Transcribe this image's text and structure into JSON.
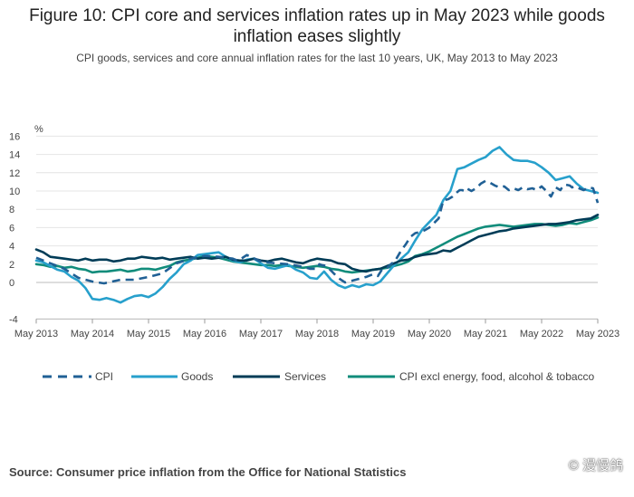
{
  "title": "Figure 10: CPI core and services inflation rates up in May 2023 while goods inflation eases slightly",
  "subtitle": "CPI goods, services and core annual inflation rates for the last 10 years, UK, May 2013 to May 2023",
  "source": "Source: Consumer price inflation from the Office for National Statistics",
  "watermark": "© 漫慢鸽",
  "chart_data": {
    "type": "line",
    "ylabel": "%",
    "ylim": [
      -4,
      16
    ],
    "yticks": [
      16,
      14,
      12,
      10,
      8,
      6,
      4,
      2,
      0,
      -4
    ],
    "xticks": [
      "May 2013",
      "May 2014",
      "May 2015",
      "May 2016",
      "May 2017",
      "May 2018",
      "May 2019",
      "May 2020",
      "May 2021",
      "May 2022",
      "May 2023"
    ],
    "legend_position": "bottom",
    "x_note": "x values are months after May 2013",
    "series": [
      {
        "name": "CPI",
        "color": "#206095",
        "dash": true,
        "x": [
          0,
          6,
          12,
          18,
          24,
          29,
          36,
          42,
          48,
          54,
          60,
          66,
          72,
          78,
          84,
          86,
          87,
          90,
          96,
          102,
          108,
          114,
          117,
          120,
          121,
          122,
          124,
          126,
          129,
          132,
          138,
          141,
          144,
          146,
          148,
          150,
          152,
          153,
          156,
          158,
          160,
          162,
          164,
          166,
          168,
          170,
          172,
          173,
          174,
          176,
          178,
          180,
          181,
          182,
          183,
          184,
          186,
          188,
          190,
          192,
          194,
          196,
          198,
          200,
          202,
          204,
          206,
          208,
          210,
          212,
          214,
          216,
          218,
          220,
          222,
          224,
          225,
          226,
          228,
          229,
          230,
          232,
          234,
          236,
          238,
          240
        ],
        "y": [
          2.7,
          2.1,
          1.5,
          0.5,
          0.1,
          -0.1,
          0.3,
          0.3,
          0.6,
          1.0,
          2.1,
          2.6,
          2.9,
          2.8,
          2.6,
          2.4,
          2.5,
          3.0,
          2.3,
          2.1,
          2.0,
          1.7,
          1.5,
          1.5,
          2.0,
          1.9,
          1.8,
          1.3,
          0.5,
          0.0,
          0.4,
          0.6,
          0.9,
          0.7,
          1.5,
          1.6,
          2.1,
          2.2,
          3.5,
          4.2,
          5.0,
          5.4,
          5.5,
          5.7,
          6.0,
          6.5,
          7.0,
          8.0,
          9.0,
          9.1,
          9.4,
          9.9,
          10.1,
          10.1,
          10.0,
          10.3,
          10.0,
          10.3,
          10.8,
          11.1,
          10.9,
          10.6,
          10.4,
          10.5,
          10.1,
          10.3,
          10.1,
          10.4,
          10.2,
          10.3,
          10.1,
          10.5,
          10.0,
          9.4,
          10.4,
          10.1,
          10.5,
          10.7,
          10.6,
          10.4,
          10.5,
          10.3,
          10.1,
          10.4,
          10.3,
          8.7
        ]
      },
      {
        "name": "Goods",
        "color": "#27a0cc",
        "dash": false,
        "x": [
          0,
          3,
          6,
          9,
          12,
          15,
          18,
          21,
          24,
          27,
          30,
          33,
          36,
          39,
          42,
          45,
          48,
          51,
          54,
          57,
          60,
          63,
          66,
          69,
          72,
          75,
          78,
          81,
          84,
          87,
          90,
          93,
          96,
          99,
          102,
          105,
          108,
          111,
          114,
          117,
          120,
          123,
          126,
          129,
          132,
          135,
          138,
          141,
          144,
          147,
          150,
          153,
          156,
          159,
          162,
          165,
          168,
          171,
          174,
          177,
          180,
          183,
          186,
          189,
          192,
          195,
          198,
          201,
          204,
          207,
          210,
          213,
          216,
          219,
          222,
          225,
          228,
          231,
          234,
          237,
          240
        ],
        "y": [
          2.4,
          2.2,
          1.8,
          1.4,
          1.2,
          0.6,
          0.2,
          -0.6,
          -1.8,
          -1.9,
          -1.7,
          -1.9,
          -2.2,
          -1.8,
          -1.5,
          -1.4,
          -1.6,
          -1.2,
          -0.5,
          0.4,
          1.1,
          2.0,
          2.4,
          3.0,
          3.1,
          3.2,
          3.3,
          2.8,
          2.4,
          2.2,
          2.5,
          2.6,
          2.1,
          1.6,
          1.5,
          1.7,
          1.9,
          1.4,
          1.1,
          0.5,
          0.4,
          1.2,
          0.3,
          -0.3,
          -0.6,
          -0.3,
          -0.5,
          -0.2,
          -0.3,
          0.1,
          1.0,
          1.9,
          2.6,
          3.3,
          4.6,
          5.8,
          6.6,
          7.4,
          9.0,
          10.0,
          12.4,
          12.6,
          13.0,
          13.4,
          13.7,
          14.4,
          14.8,
          14.0,
          13.4,
          13.3,
          13.3,
          13.1,
          12.6,
          12.0,
          11.2,
          11.4,
          11.6,
          10.8,
          10.2,
          10.0,
          9.8
        ]
      },
      {
        "name": "Services",
        "color": "#003c57",
        "dash": false,
        "x": [
          0,
          3,
          6,
          9,
          12,
          15,
          18,
          21,
          24,
          27,
          30,
          33,
          36,
          39,
          42,
          45,
          48,
          51,
          54,
          57,
          60,
          63,
          66,
          69,
          72,
          75,
          78,
          81,
          84,
          87,
          90,
          93,
          96,
          99,
          102,
          105,
          108,
          111,
          114,
          117,
          120,
          123,
          126,
          129,
          132,
          135,
          138,
          141,
          144,
          147,
          150,
          153,
          156,
          159,
          162,
          165,
          168,
          171,
          174,
          177,
          180,
          183,
          186,
          189,
          192,
          195,
          198,
          201,
          204,
          207,
          210,
          213,
          216,
          219,
          222,
          225,
          228,
          231,
          234,
          237,
          240
        ],
        "y": [
          3.6,
          3.3,
          2.8,
          2.7,
          2.6,
          2.5,
          2.4,
          2.6,
          2.4,
          2.5,
          2.5,
          2.3,
          2.4,
          2.6,
          2.6,
          2.8,
          2.7,
          2.6,
          2.7,
          2.5,
          2.6,
          2.7,
          2.8,
          2.6,
          2.7,
          2.6,
          2.7,
          2.8,
          2.5,
          2.4,
          2.4,
          2.6,
          2.4,
          2.3,
          2.5,
          2.6,
          2.4,
          2.2,
          2.1,
          2.4,
          2.6,
          2.5,
          2.4,
          2.1,
          2.0,
          1.5,
          1.3,
          1.2,
          1.4,
          1.5,
          1.8,
          2.1,
          2.4,
          2.5,
          2.8,
          3.0,
          3.1,
          3.2,
          3.5,
          3.4,
          3.8,
          4.2,
          4.6,
          5.0,
          5.2,
          5.4,
          5.6,
          5.7,
          5.9,
          6.0,
          6.1,
          6.2,
          6.3,
          6.4,
          6.4,
          6.5,
          6.6,
          6.8,
          6.9,
          7.0,
          7.4
        ]
      },
      {
        "name": "CPI excl energy, food, alcohol & tobacco",
        "color": "#118c7b",
        "dash": false,
        "x": [
          0,
          3,
          6,
          9,
          12,
          15,
          18,
          21,
          24,
          27,
          30,
          33,
          36,
          39,
          42,
          45,
          48,
          51,
          54,
          57,
          60,
          63,
          66,
          69,
          72,
          75,
          78,
          81,
          84,
          87,
          90,
          93,
          96,
          99,
          102,
          105,
          108,
          111,
          114,
          117,
          120,
          123,
          126,
          129,
          132,
          135,
          138,
          141,
          144,
          147,
          150,
          153,
          156,
          159,
          162,
          165,
          168,
          171,
          174,
          177,
          180,
          183,
          186,
          189,
          192,
          195,
          198,
          201,
          204,
          207,
          210,
          213,
          216,
          219,
          222,
          225,
          228,
          231,
          234,
          237,
          240
        ],
        "y": [
          2.0,
          1.9,
          1.7,
          1.8,
          1.6,
          1.7,
          1.5,
          1.4,
          1.1,
          1.2,
          1.2,
          1.3,
          1.4,
          1.2,
          1.3,
          1.5,
          1.5,
          1.4,
          1.6,
          1.8,
          2.2,
          2.4,
          2.5,
          2.7,
          2.9,
          2.8,
          2.7,
          2.5,
          2.3,
          2.2,
          2.1,
          2.0,
          1.9,
          1.9,
          1.8,
          1.9,
          1.8,
          1.7,
          1.6,
          1.7,
          1.8,
          1.7,
          1.5,
          1.4,
          1.2,
          1.1,
          1.2,
          1.3,
          1.4,
          1.5,
          1.6,
          1.8,
          2.0,
          2.3,
          2.9,
          3.1,
          3.4,
          3.8,
          4.2,
          4.6,
          5.0,
          5.3,
          5.6,
          5.9,
          6.1,
          6.2,
          6.3,
          6.2,
          6.1,
          6.2,
          6.3,
          6.4,
          6.4,
          6.3,
          6.2,
          6.3,
          6.5,
          6.4,
          6.6,
          6.8,
          7.1
        ]
      }
    ]
  }
}
